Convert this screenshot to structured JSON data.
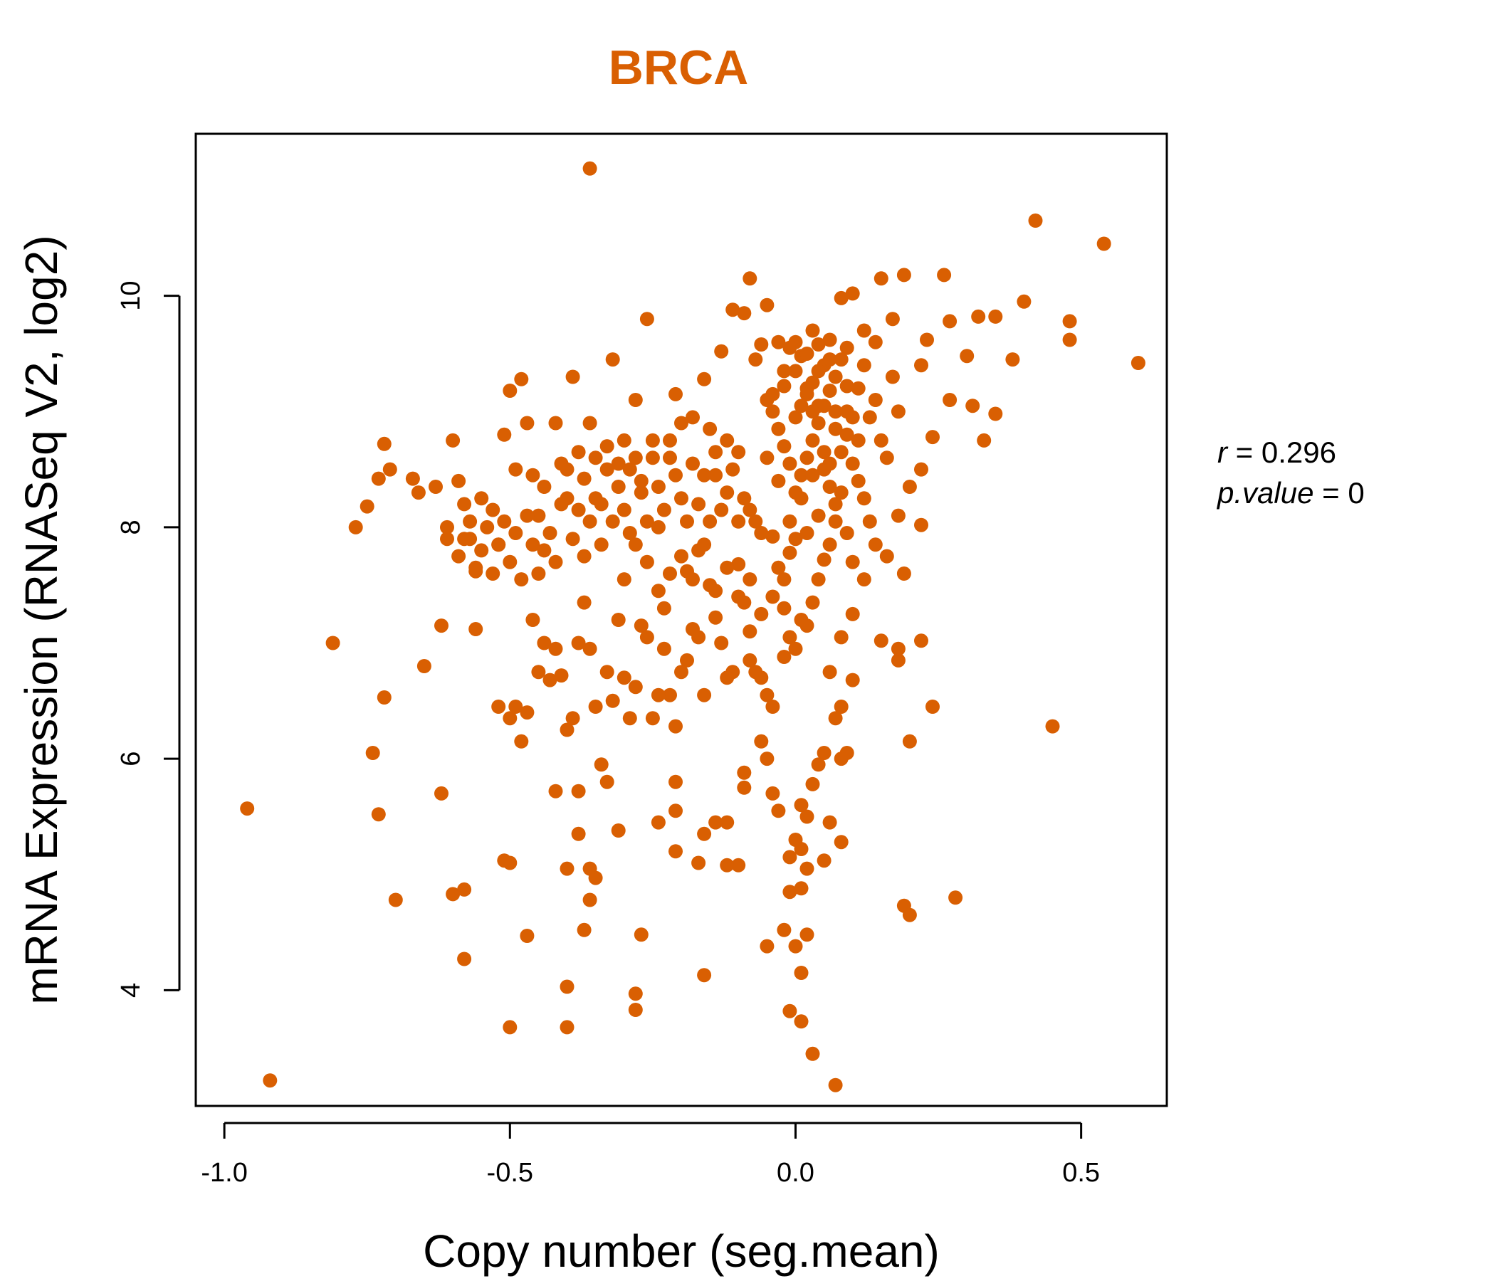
{
  "chart_data": {
    "type": "scatter",
    "title": "BRCA",
    "xlabel": "Copy number (seg.mean)",
    "ylabel": "mRNA Expression (RNASeq V2, log2)",
    "xlim": [
      -1.05,
      0.65
    ],
    "ylim": [
      3.0,
      11.4
    ],
    "x_ticks": [
      -1.0,
      -0.5,
      0.0,
      0.5
    ],
    "x_tick_labels": [
      "-1.0",
      "-0.5",
      "0.0",
      "0.5"
    ],
    "y_ticks": [
      4,
      6,
      8,
      10
    ],
    "y_tick_labels": [
      "4",
      "6",
      "8",
      "10"
    ],
    "grid": false,
    "legend": "none",
    "point_color": "#d95f02",
    "annotations": {
      "r_key": "r",
      "r_value": "0.296",
      "p_key": "p.value",
      "p_value": "0"
    },
    "points": [
      [
        -0.36,
        11.1
      ],
      [
        -0.96,
        5.57
      ],
      [
        -0.92,
        3.22
      ],
      [
        -0.81,
        7.0
      ],
      [
        -0.77,
        8.0
      ],
      [
        -0.75,
        8.18
      ],
      [
        -0.73,
        8.42
      ],
      [
        -0.72,
        8.72
      ],
      [
        -0.71,
        8.5
      ],
      [
        -0.72,
        6.53
      ],
      [
        -0.74,
        6.05
      ],
      [
        -0.73,
        5.52
      ],
      [
        -0.7,
        4.78
      ],
      [
        -0.67,
        8.42
      ],
      [
        -0.66,
        8.3
      ],
      [
        -0.65,
        6.8
      ],
      [
        -0.63,
        8.35
      ],
      [
        -0.61,
        8.0
      ],
      [
        -0.6,
        8.75
      ],
      [
        -0.59,
        8.4
      ],
      [
        -0.58,
        8.2
      ],
      [
        -0.57,
        7.9
      ],
      [
        -0.56,
        7.62
      ],
      [
        -0.56,
        7.12
      ],
      [
        -0.62,
        7.15
      ],
      [
        -0.62,
        5.7
      ],
      [
        -0.6,
        4.83
      ],
      [
        -0.58,
        4.87
      ],
      [
        -0.58,
        4.27
      ],
      [
        -0.55,
        8.25
      ],
      [
        -0.53,
        8.15
      ],
      [
        -0.52,
        7.85
      ],
      [
        -0.51,
        8.8
      ],
      [
        -0.5,
        9.18
      ],
      [
        -0.49,
        8.5
      ],
      [
        -0.48,
        9.28
      ],
      [
        -0.47,
        8.9
      ],
      [
        -0.46,
        8.45
      ],
      [
        -0.45,
        8.1
      ],
      [
        -0.44,
        7.8
      ],
      [
        -0.42,
        8.9
      ],
      [
        -0.41,
        8.55
      ],
      [
        -0.4,
        8.25
      ],
      [
        -0.39,
        9.3
      ],
      [
        -0.38,
        8.65
      ],
      [
        -0.37,
        8.42
      ],
      [
        -0.36,
        8.9
      ],
      [
        -0.35,
        8.6
      ],
      [
        -0.34,
        8.2
      ],
      [
        -0.33,
        8.7
      ],
      [
        -0.32,
        9.45
      ],
      [
        -0.31,
        8.55
      ],
      [
        -0.3,
        8.75
      ],
      [
        -0.29,
        8.5
      ],
      [
        -0.28,
        9.1
      ],
      [
        -0.27,
        8.3
      ],
      [
        -0.26,
        9.8
      ],
      [
        -0.25,
        8.6
      ],
      [
        -0.24,
        8.0
      ],
      [
        -0.23,
        7.3
      ],
      [
        -0.22,
        8.75
      ],
      [
        -0.21,
        9.15
      ],
      [
        -0.2,
        8.25
      ],
      [
        -0.19,
        7.62
      ],
      [
        -0.18,
        8.95
      ],
      [
        -0.17,
        7.8
      ],
      [
        -0.16,
        9.28
      ],
      [
        -0.15,
        8.05
      ],
      [
        -0.14,
        8.45
      ],
      [
        -0.13,
        9.52
      ],
      [
        -0.12,
        8.75
      ],
      [
        -0.11,
        9.88
      ],
      [
        -0.1,
        8.65
      ],
      [
        -0.09,
        9.85
      ],
      [
        -0.08,
        10.15
      ],
      [
        -0.07,
        9.45
      ],
      [
        -0.06,
        9.58
      ],
      [
        -0.05,
        9.92
      ],
      [
        -0.04,
        9.15
      ],
      [
        -0.03,
        9.6
      ],
      [
        -0.02,
        9.22
      ],
      [
        -0.01,
        9.55
      ],
      [
        0.0,
        9.35
      ],
      [
        0.01,
        9.48
      ],
      [
        0.02,
        9.2
      ],
      [
        0.03,
        9.7
      ],
      [
        0.04,
        9.05
      ],
      [
        0.05,
        9.4
      ],
      [
        0.06,
        9.62
      ],
      [
        0.07,
        9.0
      ],
      [
        0.08,
        9.98
      ],
      [
        0.09,
        9.55
      ],
      [
        0.1,
        10.02
      ],
      [
        0.12,
        9.7
      ],
      [
        0.14,
        9.6
      ],
      [
        0.15,
        10.15
      ],
      [
        0.17,
        9.8
      ],
      [
        0.19,
        10.18
      ],
      [
        0.22,
        9.4
      ],
      [
        0.23,
        9.62
      ],
      [
        0.26,
        10.18
      ],
      [
        0.27,
        9.78
      ],
      [
        0.3,
        9.48
      ],
      [
        0.32,
        9.82
      ],
      [
        0.35,
        9.82
      ],
      [
        0.38,
        9.45
      ],
      [
        0.4,
        9.95
      ],
      [
        0.42,
        10.65
      ],
      [
        0.48,
        9.78
      ],
      [
        0.48,
        9.62
      ],
      [
        0.54,
        10.45
      ],
      [
        0.6,
        9.42
      ],
      [
        0.33,
        8.75
      ],
      [
        0.35,
        8.98
      ],
      [
        0.31,
        9.05
      ],
      [
        0.27,
        9.1
      ],
      [
        0.24,
        8.78
      ],
      [
        0.22,
        8.5
      ],
      [
        0.2,
        8.35
      ],
      [
        0.18,
        8.1
      ],
      [
        0.22,
        8.02
      ],
      [
        0.16,
        7.75
      ],
      [
        0.19,
        7.6
      ],
      [
        0.12,
        7.55
      ],
      [
        0.1,
        7.25
      ],
      [
        0.08,
        7.05
      ],
      [
        0.06,
        6.75
      ],
      [
        0.15,
        7.02
      ],
      [
        0.18,
        6.85
      ],
      [
        0.22,
        7.02
      ],
      [
        0.18,
        6.95
      ],
      [
        0.1,
        6.68
      ],
      [
        0.24,
        6.45
      ],
      [
        0.2,
        6.15
      ],
      [
        0.08,
        6.45
      ],
      [
        0.07,
        6.35
      ],
      [
        0.05,
        6.05
      ],
      [
        0.04,
        5.95
      ],
      [
        0.03,
        5.78
      ],
      [
        0.02,
        5.5
      ],
      [
        0.01,
        5.6
      ],
      [
        0.0,
        5.3
      ],
      [
        -0.01,
        5.15
      ],
      [
        0.01,
        5.22
      ],
      [
        0.02,
        5.05
      ],
      [
        0.05,
        5.12
      ],
      [
        0.06,
        5.45
      ],
      [
        0.08,
        5.28
      ],
      [
        0.08,
        6.0
      ],
      [
        0.09,
        6.05
      ],
      [
        -0.01,
        4.85
      ],
      [
        0.01,
        4.88
      ],
      [
        -0.02,
        4.52
      ],
      [
        0.0,
        4.38
      ],
      [
        0.02,
        4.48
      ],
      [
        -0.05,
        4.38
      ],
      [
        0.01,
        4.15
      ],
      [
        -0.01,
        3.82
      ],
      [
        0.01,
        3.73
      ],
      [
        0.03,
        3.45
      ],
      [
        0.07,
        3.18
      ],
      [
        0.19,
        4.73
      ],
      [
        0.2,
        4.65
      ],
      [
        0.28,
        4.8
      ],
      [
        0.45,
        6.28
      ],
      [
        -0.04,
        5.7
      ],
      [
        -0.05,
        6.0
      ],
      [
        -0.06,
        6.15
      ],
      [
        -0.07,
        6.75
      ],
      [
        -0.08,
        7.1
      ],
      [
        -0.09,
        7.35
      ],
      [
        -0.1,
        7.68
      ],
      [
        -0.11,
        6.75
      ],
      [
        -0.12,
        6.7
      ],
      [
        -0.13,
        7.0
      ],
      [
        -0.14,
        7.22
      ],
      [
        -0.15,
        7.5
      ],
      [
        -0.16,
        6.55
      ],
      [
        -0.17,
        7.05
      ],
      [
        -0.18,
        7.12
      ],
      [
        -0.19,
        6.85
      ],
      [
        -0.2,
        6.75
      ],
      [
        -0.21,
        6.28
      ],
      [
        -0.22,
        6.55
      ],
      [
        -0.23,
        6.95
      ],
      [
        -0.24,
        6.55
      ],
      [
        -0.25,
        6.35
      ],
      [
        -0.26,
        7.05
      ],
      [
        -0.27,
        7.15
      ],
      [
        -0.28,
        6.62
      ],
      [
        -0.29,
        6.35
      ],
      [
        -0.3,
        6.7
      ],
      [
        -0.31,
        7.2
      ],
      [
        -0.32,
        6.5
      ],
      [
        -0.33,
        6.75
      ],
      [
        -0.34,
        5.95
      ],
      [
        -0.35,
        6.45
      ],
      [
        -0.36,
        6.95
      ],
      [
        -0.37,
        7.35
      ],
      [
        -0.38,
        7.0
      ],
      [
        -0.39,
        6.35
      ],
      [
        -0.4,
        6.25
      ],
      [
        -0.41,
        6.72
      ],
      [
        -0.42,
        6.95
      ],
      [
        -0.43,
        6.68
      ],
      [
        -0.44,
        7.0
      ],
      [
        -0.45,
        6.75
      ],
      [
        -0.46,
        7.2
      ],
      [
        -0.47,
        6.4
      ],
      [
        -0.48,
        6.15
      ],
      [
        -0.49,
        6.45
      ],
      [
        -0.5,
        6.35
      ],
      [
        -0.52,
        6.45
      ],
      [
        -0.12,
        5.45
      ],
      [
        -0.1,
        5.08
      ],
      [
        -0.12,
        5.08
      ],
      [
        -0.14,
        5.45
      ],
      [
        -0.16,
        5.35
      ],
      [
        -0.17,
        5.1
      ],
      [
        -0.21,
        5.55
      ],
      [
        -0.21,
        5.2
      ],
      [
        -0.21,
        5.8
      ],
      [
        -0.24,
        5.45
      ],
      [
        -0.27,
        4.48
      ],
      [
        -0.28,
        3.97
      ],
      [
        -0.28,
        3.83
      ],
      [
        -0.16,
        4.13
      ],
      [
        -0.31,
        5.38
      ],
      [
        -0.33,
        5.8
      ],
      [
        -0.35,
        4.97
      ],
      [
        -0.36,
        5.05
      ],
      [
        -0.36,
        4.78
      ],
      [
        -0.37,
        4.52
      ],
      [
        -0.38,
        5.35
      ],
      [
        -0.38,
        5.72
      ],
      [
        -0.4,
        5.05
      ],
      [
        -0.42,
        5.72
      ],
      [
        -0.4,
        4.03
      ],
      [
        -0.4,
        3.68
      ],
      [
        -0.47,
        4.47
      ],
      [
        -0.5,
        3.68
      ],
      [
        -0.5,
        5.1
      ],
      [
        -0.51,
        5.12
      ],
      [
        -0.09,
        5.75
      ],
      [
        -0.09,
        5.88
      ],
      [
        -0.03,
        5.55
      ],
      [
        -0.04,
        6.45
      ],
      [
        -0.05,
        6.55
      ],
      [
        -0.06,
        6.7
      ],
      [
        -0.08,
        6.85
      ],
      [
        -0.02,
        6.88
      ],
      [
        -0.01,
        7.05
      ],
      [
        0.0,
        6.95
      ],
      [
        0.01,
        7.2
      ],
      [
        0.02,
        7.15
      ],
      [
        0.03,
        7.35
      ],
      [
        0.04,
        7.55
      ],
      [
        0.05,
        7.72
      ],
      [
        0.06,
        7.85
      ],
      [
        0.07,
        8.05
      ],
      [
        0.0,
        7.9
      ],
      [
        -0.01,
        7.78
      ],
      [
        -0.02,
        7.55
      ],
      [
        -0.03,
        7.65
      ],
      [
        -0.04,
        7.92
      ],
      [
        -0.06,
        7.95
      ],
      [
        -0.07,
        8.05
      ],
      [
        -0.08,
        8.15
      ],
      [
        -0.09,
        8.25
      ],
      [
        -0.1,
        8.05
      ],
      [
        0.0,
        8.3
      ],
      [
        0.01,
        8.45
      ],
      [
        0.02,
        8.6
      ],
      [
        0.03,
        8.75
      ],
      [
        0.04,
        8.9
      ],
      [
        0.05,
        9.05
      ],
      [
        0.06,
        9.18
      ],
      [
        0.07,
        9.3
      ],
      [
        0.08,
        9.45
      ],
      [
        0.09,
        9.22
      ],
      [
        -0.01,
        8.55
      ],
      [
        -0.02,
        8.7
      ],
      [
        -0.03,
        8.85
      ],
      [
        -0.04,
        9.0
      ],
      [
        -0.05,
        9.1
      ],
      [
        0.0,
        8.95
      ],
      [
        0.01,
        9.05
      ],
      [
        0.02,
        9.15
      ],
      [
        0.03,
        9.25
      ],
      [
        0.04,
        9.35
      ],
      [
        0.05,
        8.5
      ],
      [
        0.06,
        8.35
      ],
      [
        0.07,
        8.2
      ],
      [
        0.08,
        8.65
      ],
      [
        0.09,
        8.8
      ],
      [
        0.1,
        8.55
      ],
      [
        0.11,
        8.4
      ],
      [
        0.12,
        8.25
      ],
      [
        0.13,
        8.95
      ],
      [
        0.14,
        9.1
      ],
      [
        0.15,
        8.75
      ],
      [
        0.16,
        8.6
      ],
      [
        0.17,
        9.3
      ],
      [
        0.18,
        9.0
      ],
      [
        0.11,
        9.2
      ],
      [
        0.12,
        9.4
      ],
      [
        0.13,
        8.05
      ],
      [
        0.14,
        7.85
      ],
      [
        0.1,
        7.7
      ],
      [
        0.09,
        7.95
      ],
      [
        -0.11,
        8.5
      ],
      [
        -0.12,
        8.3
      ],
      [
        -0.13,
        8.15
      ],
      [
        -0.14,
        8.65
      ],
      [
        -0.15,
        8.85
      ],
      [
        -0.16,
        8.45
      ],
      [
        -0.17,
        8.2
      ],
      [
        -0.18,
        8.55
      ],
      [
        -0.19,
        8.05
      ],
      [
        -0.2,
        8.9
      ],
      [
        -0.21,
        8.45
      ],
      [
        -0.22,
        8.6
      ],
      [
        -0.23,
        8.15
      ],
      [
        -0.24,
        8.35
      ],
      [
        -0.25,
        8.75
      ],
      [
        -0.26,
        8.05
      ],
      [
        -0.27,
        8.4
      ],
      [
        -0.28,
        8.6
      ],
      [
        -0.29,
        7.95
      ],
      [
        -0.3,
        8.15
      ],
      [
        -0.31,
        8.35
      ],
      [
        -0.32,
        8.05
      ],
      [
        -0.33,
        8.5
      ],
      [
        -0.34,
        7.85
      ],
      [
        -0.35,
        8.25
      ],
      [
        -0.36,
        8.05
      ],
      [
        -0.37,
        7.75
      ],
      [
        -0.38,
        8.15
      ],
      [
        -0.39,
        7.9
      ],
      [
        -0.4,
        8.5
      ],
      [
        -0.41,
        8.2
      ],
      [
        -0.42,
        7.7
      ],
      [
        -0.43,
        7.95
      ],
      [
        -0.44,
        8.35
      ],
      [
        -0.45,
        7.6
      ],
      [
        -0.46,
        7.85
      ],
      [
        -0.47,
        8.1
      ],
      [
        -0.48,
        7.55
      ],
      [
        -0.49,
        7.95
      ],
      [
        -0.5,
        7.7
      ],
      [
        -0.51,
        8.05
      ],
      [
        -0.52,
        7.85
      ],
      [
        -0.53,
        7.6
      ],
      [
        -0.54,
        8.0
      ],
      [
        -0.55,
        7.8
      ],
      [
        -0.56,
        7.65
      ],
      [
        -0.57,
        8.05
      ],
      [
        -0.58,
        7.9
      ],
      [
        -0.59,
        7.75
      ],
      [
        -0.61,
        7.9
      ],
      [
        -0.3,
        7.55
      ],
      [
        -0.28,
        7.85
      ],
      [
        -0.26,
        7.7
      ],
      [
        -0.24,
        7.45
      ],
      [
        -0.22,
        7.6
      ],
      [
        -0.2,
        7.75
      ],
      [
        -0.18,
        7.55
      ],
      [
        -0.16,
        7.85
      ],
      [
        -0.14,
        7.45
      ],
      [
        -0.12,
        7.65
      ],
      [
        -0.1,
        7.4
      ],
      [
        -0.08,
        7.55
      ],
      [
        -0.06,
        7.25
      ],
      [
        -0.04,
        7.4
      ],
      [
        -0.02,
        7.3
      ],
      [
        0.1,
        8.95
      ],
      [
        0.11,
        8.75
      ],
      [
        0.09,
        9.0
      ],
      [
        0.07,
        8.85
      ],
      [
        0.05,
        8.65
      ],
      [
        0.03,
        8.45
      ],
      [
        0.01,
        8.25
      ],
      [
        -0.01,
        8.05
      ],
      [
        -0.03,
        8.4
      ],
      [
        -0.05,
        8.6
      ],
      [
        0.04,
        8.1
      ],
      [
        0.02,
        7.95
      ],
      [
        0.06,
        8.55
      ],
      [
        0.08,
        8.3
      ],
      [
        -0.02,
        9.35
      ],
      [
        0.0,
        9.6
      ],
      [
        0.02,
        9.5
      ],
      [
        0.04,
        9.58
      ],
      [
        0.06,
        9.45
      ],
      [
        0.03,
        9.0
      ]
    ]
  }
}
